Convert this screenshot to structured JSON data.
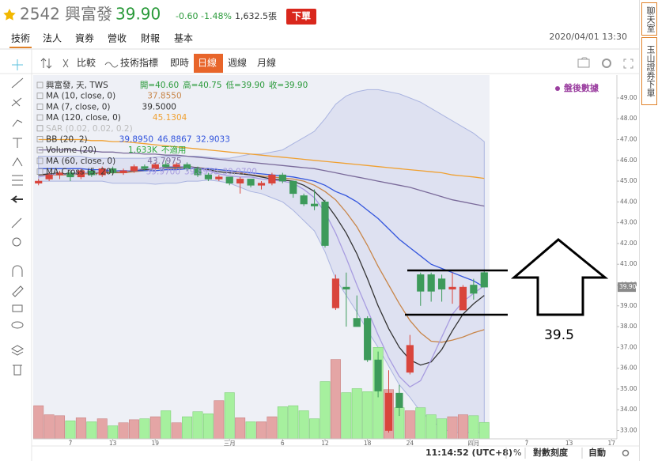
{
  "header": {
    "symbol": "2542",
    "name": "興富發",
    "price": "39.90",
    "change": "-0.60",
    "change_pct": "-1.48%",
    "volume": "1,632.5張",
    "order_button": "下單",
    "tabs": [
      "技術",
      "法人",
      "資券",
      "營收",
      "財報",
      "基本"
    ],
    "datetime": "2020/04/01 13:30"
  },
  "toolbar": {
    "compare": "比較",
    "indicators": "技術指標",
    "periods": [
      "即時",
      "日線",
      "週線",
      "月線"
    ]
  },
  "side_panel": [
    "聊天室",
    "玉山證券下單"
  ],
  "status_bar": {
    "time": "11:14:52 (UTC+8)",
    "percent": "%",
    "log_scale": "對數刻度",
    "auto": "自動"
  },
  "chart_data": {
    "type": "candlestick",
    "ohlc_title": "興富發, 天, TWS",
    "ohlc_readings": [
      "開=40.60",
      "高=40.75",
      "低=39.90",
      "收=39.90"
    ],
    "up_color": "#d9453c",
    "down_color": "#3d9a5a",
    "up_volume_color": "#e4a5a5",
    "down_volume_color": "#a6f09e",
    "after_hours": "盤後數據",
    "annotation": "39.5",
    "current_price": {
      "value": 39.9,
      "label": "39.90"
    },
    "xlim": [
      -0.5,
      54.5
    ],
    "ylim": [
      32.6,
      50.1
    ],
    "y2lim": [
      0,
      36.2
    ],
    "xticks": [
      {
        "value": 3,
        "label": "7"
      },
      {
        "value": 7,
        "label": "13"
      },
      {
        "value": 11,
        "label": "19"
      },
      {
        "value": 18,
        "label": "三月"
      },
      {
        "value": 23,
        "label": "6"
      },
      {
        "value": 27,
        "label": "12"
      },
      {
        "value": 31,
        "label": "18"
      },
      {
        "value": 35,
        "label": "24"
      },
      {
        "value": 41,
        "label": "四月"
      },
      {
        "value": 46,
        "label": "7"
      },
      {
        "value": 50,
        "label": "13"
      },
      {
        "value": 54,
        "label": "17"
      }
    ],
    "yticks": [
      {
        "value": 49,
        "label": "49.00"
      },
      {
        "value": 48,
        "label": "48.00"
      },
      {
        "value": 47,
        "label": "47.00"
      },
      {
        "value": 46,
        "label": "46.00"
      },
      {
        "value": 45,
        "label": "45.00"
      },
      {
        "value": 44,
        "label": "44.00"
      },
      {
        "value": 43,
        "label": "43.00"
      },
      {
        "value": 42,
        "label": "42.00"
      },
      {
        "value": 41,
        "label": "41.00"
      },
      {
        "value": 40,
        "label": "40.00"
      },
      {
        "value": 39,
        "label": "39.00"
      },
      {
        "value": 38,
        "label": "38.00"
      },
      {
        "value": 37,
        "label": "37.00"
      },
      {
        "value": 36,
        "label": "36.00"
      },
      {
        "value": 35,
        "label": "35.00"
      },
      {
        "value": 34,
        "label": "34.00"
      },
      {
        "value": 33,
        "label": "33.00"
      }
    ],
    "ohlc": [
      [
        44.9,
        45.1,
        44.8,
        45.0
      ],
      [
        45.1,
        45.4,
        45.0,
        45.3
      ],
      [
        45.3,
        45.5,
        45.1,
        45.4
      ],
      [
        45.4,
        45.5,
        45.0,
        45.2
      ],
      [
        45.2,
        45.6,
        45.1,
        45.5
      ],
      [
        45.5,
        45.6,
        45.2,
        45.3
      ],
      [
        45.3,
        45.7,
        45.2,
        45.6
      ],
      [
        45.6,
        45.7,
        45.3,
        45.4
      ],
      [
        45.4,
        45.6,
        45.3,
        45.5
      ],
      [
        45.5,
        45.8,
        45.4,
        45.7
      ],
      [
        45.7,
        45.8,
        45.5,
        45.6
      ],
      [
        45.6,
        45.9,
        45.5,
        45.8
      ],
      [
        45.8,
        46.0,
        45.6,
        45.7
      ],
      [
        45.7,
        45.9,
        45.6,
        45.8
      ],
      [
        45.8,
        45.9,
        45.5,
        45.6
      ],
      [
        45.6,
        45.7,
        45.2,
        45.3
      ],
      [
        45.3,
        45.4,
        45.0,
        45.1
      ],
      [
        45.1,
        45.3,
        45.0,
        45.2
      ],
      [
        45.2,
        45.2,
        44.8,
        44.9
      ],
      [
        44.9,
        45.2,
        44.4,
        45.1
      ],
      [
        45.1,
        45.1,
        44.7,
        44.8
      ],
      [
        44.8,
        45.0,
        44.6,
        44.9
      ],
      [
        44.9,
        45.4,
        44.8,
        45.3
      ],
      [
        45.3,
        45.4,
        44.9,
        45.0
      ],
      [
        45.0,
        45.0,
        44.2,
        44.4
      ],
      [
        44.3,
        44.4,
        43.8,
        43.9
      ],
      [
        43.9,
        44.6,
        43.6,
        43.8
      ],
      [
        44.0,
        44.1,
        41.8,
        41.9
      ],
      [
        38.9,
        40.5,
        38.8,
        40.3
      ],
      [
        39.9,
        40.6,
        38.0,
        39.8
      ],
      [
        38.4,
        39.5,
        38.0,
        38.0
      ],
      [
        38.4,
        38.5,
        36.3,
        36.4
      ],
      [
        36.4,
        36.8,
        34.6,
        34.9
      ],
      [
        33.0,
        35.9,
        32.9,
        34.8
      ],
      [
        34.8,
        35.2,
        33.7,
        34.1
      ],
      [
        35.8,
        37.6,
        35.7,
        37.1
      ],
      [
        40.5,
        40.6,
        39.0,
        39.7
      ],
      [
        40.5,
        40.6,
        39.2,
        39.7
      ],
      [
        40.3,
        40.5,
        39.2,
        39.8
      ],
      [
        39.8,
        40.6,
        39.1,
        39.9
      ],
      [
        38.8,
        40.0,
        38.8,
        39.9
      ],
      [
        40.0,
        40.3,
        39.3,
        39.6
      ],
      [
        40.6,
        40.75,
        39.9,
        39.9
      ]
    ],
    "indicators": [
      {
        "name": "MA (10, close, 0)",
        "readings": [
          "37.8550"
        ],
        "color": "#c8864a",
        "values": [
          45.3,
          45.3,
          45.3,
          45.3,
          45.35,
          45.35,
          45.4,
          45.4,
          45.4,
          45.45,
          45.5,
          45.5,
          45.55,
          45.6,
          45.6,
          45.65,
          45.6,
          45.55,
          45.5,
          45.4,
          45.3,
          45.25,
          45.2,
          45.15,
          45.1,
          45.0,
          44.8,
          44.5,
          44.1,
          43.5,
          42.8,
          41.9,
          40.9,
          40.0,
          39.1,
          38.3,
          37.7,
          37.3,
          37.25,
          37.35,
          37.5,
          37.7,
          37.855
        ]
      },
      {
        "name": "MA (7, close, 0)",
        "readings": [
          "39.5000"
        ],
        "color": "#333333",
        "values": [
          45.3,
          45.35,
          45.35,
          45.35,
          45.4,
          45.4,
          45.45,
          45.45,
          45.45,
          45.5,
          45.55,
          45.6,
          45.65,
          45.65,
          45.7,
          45.65,
          45.55,
          45.45,
          45.4,
          45.35,
          45.3,
          45.2,
          45.1,
          45.05,
          45.0,
          44.8,
          44.5,
          44.0,
          43.3,
          42.5,
          41.5,
          40.3,
          39.0,
          37.9,
          37.0,
          36.4,
          36.15,
          36.3,
          36.9,
          37.8,
          38.6,
          39.1,
          39.5
        ]
      },
      {
        "name": "MA (120, close, 0)",
        "readings": [
          "45.1304"
        ],
        "color": "#f0a030",
        "values": [
          47.0,
          47.0,
          47.0,
          47.0,
          47.0,
          46.95,
          46.95,
          46.9,
          46.9,
          46.85,
          46.8,
          46.75,
          46.7,
          46.65,
          46.6,
          46.55,
          46.5,
          46.45,
          46.4,
          46.35,
          46.3,
          46.25,
          46.2,
          46.15,
          46.1,
          46.05,
          46.0,
          45.95,
          45.9,
          45.85,
          45.8,
          45.75,
          45.7,
          45.65,
          45.6,
          45.55,
          45.5,
          45.45,
          45.4,
          45.3,
          45.25,
          45.2,
          45.13
        ]
      },
      {
        "name": "SAR (0.02, 0.02, 0.2)",
        "color": "#bbbbbb"
      },
      {
        "name": "BB (20, 2)",
        "readings": [
          "39.8950",
          "46.8867",
          "32.9033"
        ],
        "color": "#3355dd",
        "middle": [
          45.6,
          45.6,
          45.6,
          45.6,
          45.6,
          45.55,
          45.55,
          45.5,
          45.5,
          45.5,
          45.5,
          45.5,
          45.55,
          45.55,
          45.6,
          45.6,
          45.6,
          45.55,
          45.5,
          45.45,
          45.4,
          45.35,
          45.3,
          45.25,
          45.2,
          45.1,
          45.0,
          44.8,
          44.5,
          44.3,
          44.0,
          43.6,
          43.2,
          42.7,
          42.2,
          41.8,
          41.4,
          41.0,
          40.8,
          40.6,
          40.4,
          40.2,
          39.9
        ],
        "upper": [
          46.2,
          46.2,
          46.2,
          46.2,
          46.2,
          46.1,
          46.1,
          46.1,
          46.1,
          46.1,
          46.1,
          46.15,
          46.2,
          46.2,
          46.2,
          46.2,
          46.15,
          46.1,
          46.1,
          46.2,
          46.3,
          46.3,
          46.4,
          46.5,
          46.8,
          47.1,
          47.4,
          48.0,
          48.7,
          49.1,
          49.3,
          49.4,
          49.4,
          49.3,
          49.2,
          49.0,
          48.8,
          48.5,
          48.2,
          47.9,
          47.6,
          47.3,
          46.9
        ],
        "lower": [
          45.0,
          45.0,
          45.0,
          45.0,
          45.0,
          45.0,
          45.0,
          44.9,
          44.9,
          44.9,
          44.9,
          44.85,
          44.9,
          44.9,
          45.0,
          45.0,
          45.05,
          45.0,
          44.9,
          44.7,
          44.5,
          44.4,
          44.2,
          44.0,
          43.6,
          43.1,
          42.6,
          41.6,
          40.3,
          39.5,
          38.7,
          37.8,
          37.0,
          36.1,
          35.2,
          34.6,
          33.9,
          33.5,
          33.1,
          32.9,
          32.9,
          32.9,
          32.9
        ]
      },
      {
        "name": "Volume (20)",
        "readings": [
          "1.633K",
          "不適用"
        ],
        "color": "#2aa83a",
        "volumes": [
          3.3,
          2.4,
          2.3,
          1.8,
          2.1,
          1.7,
          2.0,
          1.3,
          1.6,
          1.9,
          2.0,
          2.2,
          2.8,
          1.6,
          2.2,
          2.7,
          2.5,
          3.8,
          4.6,
          2.1,
          1.7,
          1.7,
          2.2,
          3.2,
          3.3,
          2.8,
          2.0,
          5.7,
          7.9,
          4.6,
          5.0,
          4.7,
          9.1,
          4.9,
          3.1,
          2.8,
          3.1,
          2.4,
          2.0,
          2.2,
          2.4,
          2.3,
          1.633
        ]
      },
      {
        "name": "MA (60, close, 0)",
        "readings": [
          "43.7975"
        ],
        "color": "#7a6a9a",
        "values": [
          46.5,
          46.5,
          46.5,
          46.5,
          46.45,
          46.45,
          46.4,
          46.4,
          46.35,
          46.35,
          46.3,
          46.3,
          46.25,
          46.25,
          46.2,
          46.15,
          46.1,
          46.05,
          46.0,
          45.95,
          45.9,
          45.85,
          45.8,
          45.75,
          45.7,
          45.65,
          45.6,
          45.5,
          45.4,
          45.3,
          45.2,
          45.1,
          45.0,
          44.9,
          44.8,
          44.7,
          44.55,
          44.4,
          44.25,
          44.1,
          44.0,
          43.9,
          43.8
        ]
      },
      {
        "name": "MA Cross (5, 20)",
        "readings": [
          "39.9700",
          "39.8950",
          "39.9700"
        ],
        "color": "#a89ce0",
        "values": [
          45.2,
          45.3,
          45.35,
          45.3,
          45.4,
          45.4,
          45.45,
          45.5,
          45.45,
          45.55,
          45.6,
          45.6,
          45.7,
          45.7,
          45.7,
          45.6,
          45.5,
          45.35,
          45.25,
          45.2,
          45.2,
          45.1,
          45.05,
          45.0,
          44.9,
          44.6,
          44.2,
          43.5,
          42.5,
          41.3,
          40.0,
          38.8,
          37.6,
          36.5,
          35.6,
          35.1,
          35.4,
          36.4,
          37.5,
          38.6,
          39.2,
          39.6,
          39.97
        ]
      }
    ]
  }
}
